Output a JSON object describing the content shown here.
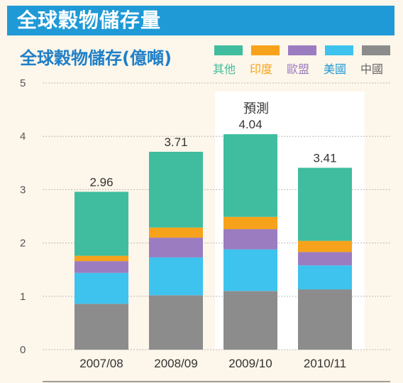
{
  "header": {
    "banner_title": "全球穀物儲存量"
  },
  "chart_data": {
    "type": "bar",
    "stacked": true,
    "title": "全球穀物儲存(億噸)",
    "categories": [
      "2007/08",
      "2008/09",
      "2009/10",
      "2010/11"
    ],
    "ylim": [
      0,
      5
    ],
    "yticks": [
      "0",
      "1",
      "2",
      "3",
      "4",
      "5"
    ],
    "grid": true,
    "legend_position": "top-right",
    "forecast_label": "預測",
    "forecast_categories": [
      "2009/10",
      "2010/11"
    ],
    "totals": [
      "2.96",
      "3.71",
      "4.04",
      "3.41"
    ],
    "series": [
      {
        "name": "中國",
        "color": "#8c8c8c",
        "values": [
          0.86,
          1.02,
          1.1,
          1.13
        ]
      },
      {
        "name": "美國",
        "color": "#3dc3ee",
        "values": [
          0.58,
          0.71,
          0.78,
          0.45
        ]
      },
      {
        "name": "歐盟",
        "color": "#9b7cc0",
        "values": [
          0.22,
          0.37,
          0.38,
          0.25
        ]
      },
      {
        "name": "印度",
        "color": "#f7a21b",
        "values": [
          0.1,
          0.19,
          0.23,
          0.21
        ]
      },
      {
        "name": "其他",
        "color": "#3fbd9e",
        "values": [
          1.2,
          1.42,
          1.55,
          1.37
        ]
      }
    ]
  }
}
